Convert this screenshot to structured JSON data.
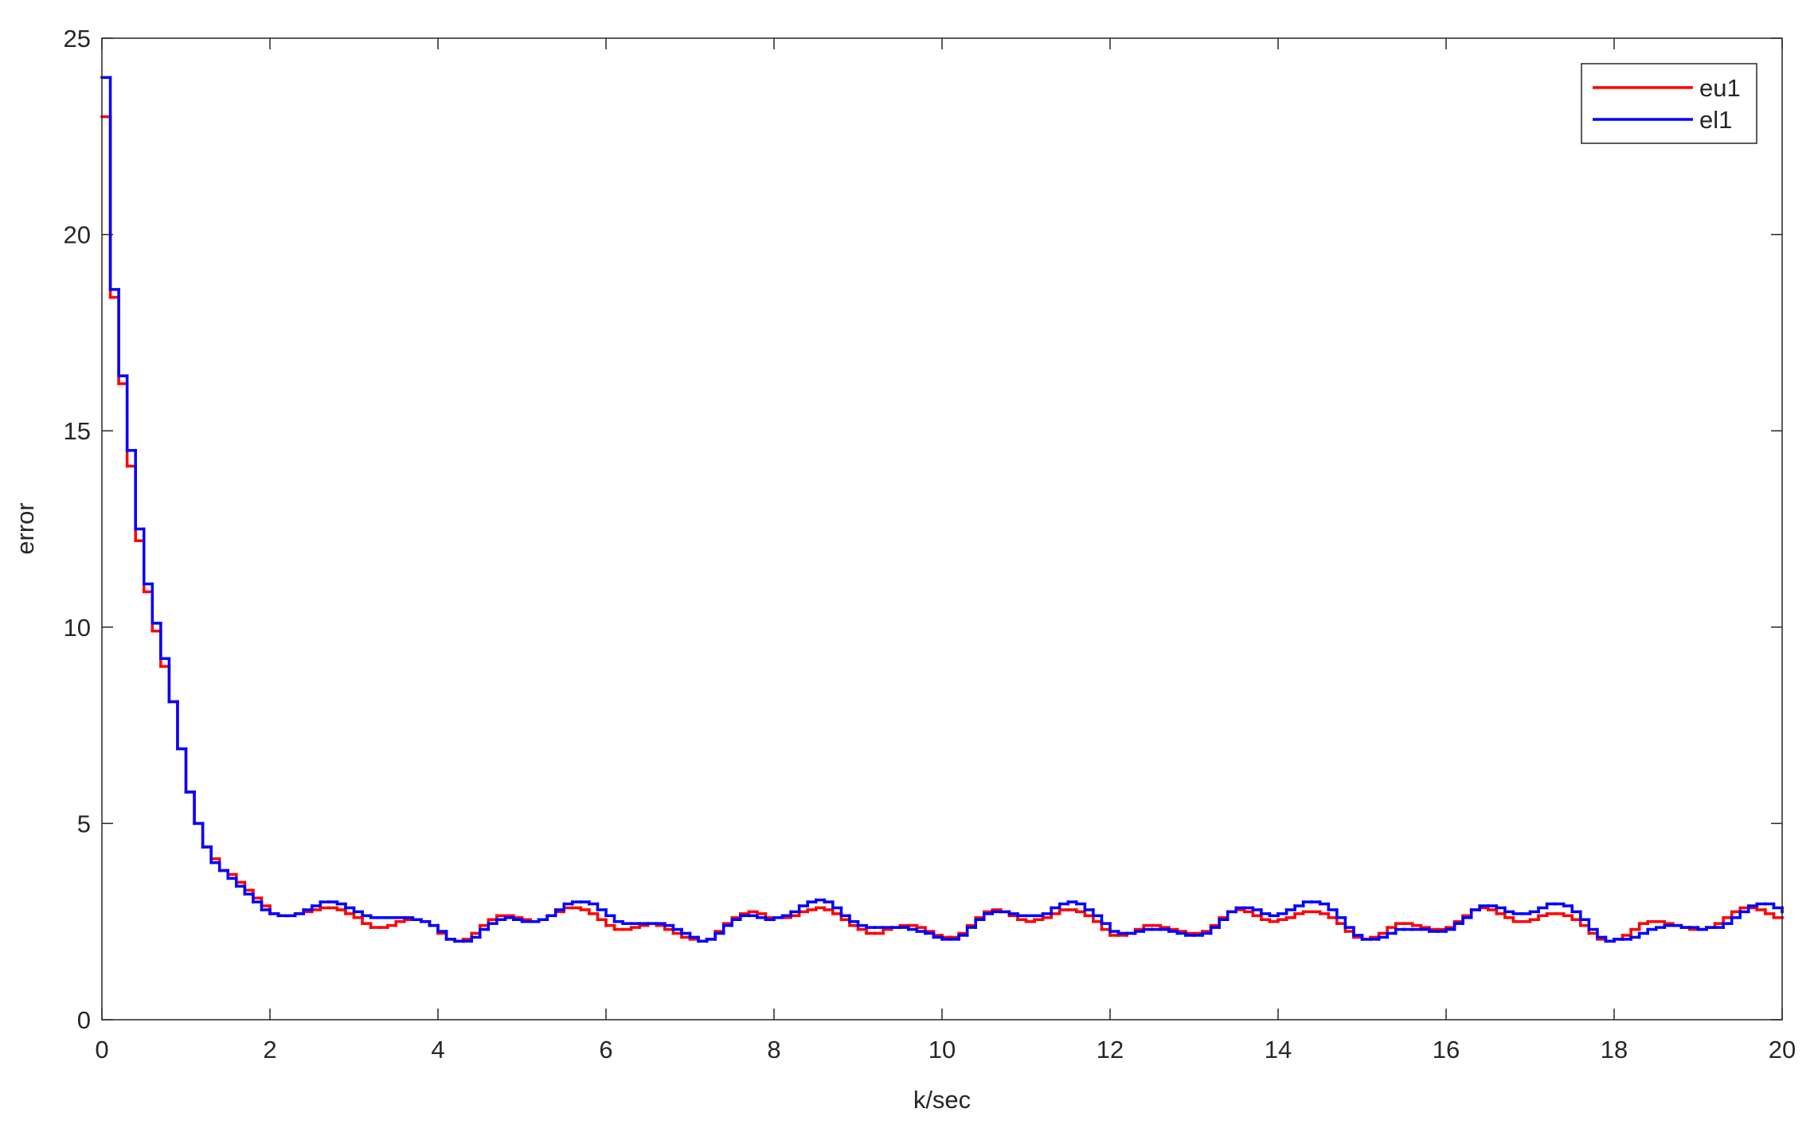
{
  "chart_data": {
    "type": "stairs",
    "x_label": "k/sec",
    "y_label": "error",
    "xlim": [
      0,
      20
    ],
    "ylim": [
      0,
      25
    ],
    "xticks": [
      0,
      2,
      4,
      6,
      8,
      10,
      12,
      14,
      16,
      18,
      20
    ],
    "yticks": [
      0,
      5,
      10,
      15,
      20,
      25
    ],
    "grid": false,
    "legend": "top-right",
    "x": [
      0,
      0.1,
      0.2,
      0.3,
      0.4,
      0.5,
      0.6,
      0.7,
      0.8,
      0.9,
      1,
      1.1,
      1.2,
      1.3,
      1.4,
      1.5,
      1.6,
      1.7,
      1.8,
      1.9,
      2,
      2.1,
      2.2,
      2.3,
      2.4,
      2.5,
      2.6,
      2.7,
      2.8,
      2.9,
      3,
      3.1,
      3.2,
      3.3,
      3.4,
      3.5,
      3.6,
      3.7,
      3.8,
      3.9,
      4,
      4.1,
      4.2,
      4.3,
      4.4,
      4.5,
      4.6,
      4.7,
      4.8,
      4.9,
      5,
      5.1,
      5.2,
      5.3,
      5.4,
      5.5,
      5.6,
      5.7,
      5.8,
      5.9,
      6,
      6.1,
      6.2,
      6.3,
      6.4,
      6.5,
      6.6,
      6.7,
      6.8,
      6.9,
      7,
      7.1,
      7.2,
      7.3,
      7.4,
      7.5,
      7.6,
      7.7,
      7.8,
      7.9,
      8,
      8.1,
      8.2,
      8.3,
      8.4,
      8.5,
      8.6,
      8.7,
      8.8,
      8.9,
      9,
      9.1,
      9.2,
      9.3,
      9.4,
      9.5,
      9.6,
      9.7,
      9.8,
      9.9,
      10,
      10.1,
      10.2,
      10.3,
      10.4,
      10.5,
      10.6,
      10.7,
      10.8,
      10.9,
      11,
      11.1,
      11.2,
      11.3,
      11.4,
      11.5,
      11.6,
      11.7,
      11.8,
      11.9,
      12,
      12.1,
      12.2,
      12.3,
      12.4,
      12.5,
      12.6,
      12.7,
      12.8,
      12.9,
      13,
      13.1,
      13.2,
      13.3,
      13.4,
      13.5,
      13.6,
      13.7,
      13.8,
      13.9,
      14,
      14.1,
      14.2,
      14.3,
      14.4,
      14.5,
      14.6,
      14.7,
      14.8,
      14.9,
      15,
      15.1,
      15.2,
      15.3,
      15.4,
      15.5,
      15.6,
      15.7,
      15.8,
      15.9,
      16,
      16.1,
      16.2,
      16.3,
      16.4,
      16.5,
      16.6,
      16.7,
      16.8,
      16.9,
      17,
      17.1,
      17.2,
      17.3,
      17.4,
      17.5,
      17.6,
      17.7,
      17.8,
      17.9,
      18,
      18.1,
      18.2,
      18.3,
      18.4,
      18.5,
      18.6,
      18.7,
      18.8,
      18.9,
      19,
      19.1,
      19.2,
      19.3,
      19.4,
      19.5,
      19.6,
      19.7,
      19.8,
      19.9,
      20
    ],
    "series": [
      {
        "name": "eu1",
        "color": "#ff0000",
        "values": [
          23,
          18.4,
          16.2,
          14.1,
          12.2,
          10.9,
          9.9,
          9.0,
          8.1,
          6.9,
          5.8,
          5.0,
          4.4,
          4.1,
          3.8,
          3.7,
          3.5,
          3.3,
          3.1,
          2.9,
          2.7,
          2.65,
          2.65,
          2.7,
          2.75,
          2.8,
          2.85,
          2.85,
          2.8,
          2.7,
          2.6,
          2.45,
          2.35,
          2.35,
          2.4,
          2.5,
          2.55,
          2.55,
          2.5,
          2.4,
          2.2,
          2.05,
          2.0,
          2.05,
          2.2,
          2.4,
          2.55,
          2.65,
          2.65,
          2.6,
          2.55,
          2.5,
          2.55,
          2.65,
          2.75,
          2.85,
          2.85,
          2.8,
          2.7,
          2.55,
          2.4,
          2.3,
          2.3,
          2.35,
          2.4,
          2.45,
          2.4,
          2.3,
          2.2,
          2.1,
          2.05,
          2.0,
          2.05,
          2.25,
          2.45,
          2.6,
          2.7,
          2.75,
          2.7,
          2.6,
          2.6,
          2.6,
          2.65,
          2.75,
          2.8,
          2.85,
          2.8,
          2.7,
          2.55,
          2.4,
          2.3,
          2.2,
          2.2,
          2.3,
          2.35,
          2.4,
          2.4,
          2.35,
          2.25,
          2.15,
          2.1,
          2.1,
          2.2,
          2.4,
          2.6,
          2.75,
          2.8,
          2.75,
          2.65,
          2.55,
          2.5,
          2.55,
          2.6,
          2.7,
          2.8,
          2.8,
          2.75,
          2.65,
          2.5,
          2.3,
          2.15,
          2.15,
          2.2,
          2.3,
          2.4,
          2.4,
          2.35,
          2.3,
          2.25,
          2.2,
          2.2,
          2.25,
          2.4,
          2.6,
          2.75,
          2.8,
          2.75,
          2.65,
          2.55,
          2.5,
          2.55,
          2.6,
          2.7,
          2.75,
          2.75,
          2.7,
          2.6,
          2.45,
          2.25,
          2.1,
          2.05,
          2.1,
          2.2,
          2.35,
          2.45,
          2.45,
          2.4,
          2.35,
          2.3,
          2.3,
          2.35,
          2.5,
          2.65,
          2.8,
          2.85,
          2.8,
          2.7,
          2.6,
          2.5,
          2.5,
          2.55,
          2.65,
          2.7,
          2.7,
          2.65,
          2.55,
          2.4,
          2.2,
          2.05,
          2.0,
          2.05,
          2.15,
          2.3,
          2.45,
          2.5,
          2.5,
          2.45,
          2.4,
          2.35,
          2.3,
          2.3,
          2.35,
          2.45,
          2.6,
          2.75,
          2.85,
          2.85,
          2.8,
          2.7,
          2.6,
          2.6
        ]
      },
      {
        "name": "el1",
        "color": "#0000ff",
        "values": [
          24,
          18.6,
          16.4,
          14.5,
          12.5,
          11.1,
          10.1,
          9.2,
          8.1,
          6.9,
          5.8,
          5.0,
          4.4,
          4.0,
          3.8,
          3.6,
          3.4,
          3.2,
          3.0,
          2.8,
          2.7,
          2.65,
          2.65,
          2.7,
          2.8,
          2.9,
          3.0,
          3.0,
          2.95,
          2.85,
          2.75,
          2.65,
          2.6,
          2.6,
          2.6,
          2.6,
          2.6,
          2.55,
          2.5,
          2.4,
          2.25,
          2.05,
          2.0,
          2.0,
          2.1,
          2.3,
          2.45,
          2.55,
          2.6,
          2.55,
          2.5,
          2.5,
          2.55,
          2.65,
          2.8,
          2.95,
          3.0,
          3.0,
          2.95,
          2.8,
          2.65,
          2.5,
          2.45,
          2.45,
          2.45,
          2.45,
          2.45,
          2.4,
          2.3,
          2.2,
          2.1,
          2.0,
          2.05,
          2.2,
          2.4,
          2.55,
          2.65,
          2.65,
          2.6,
          2.55,
          2.6,
          2.65,
          2.75,
          2.9,
          3.0,
          3.05,
          3.0,
          2.85,
          2.65,
          2.5,
          2.4,
          2.35,
          2.35,
          2.35,
          2.35,
          2.35,
          2.3,
          2.25,
          2.2,
          2.1,
          2.05,
          2.05,
          2.15,
          2.35,
          2.55,
          2.7,
          2.75,
          2.75,
          2.7,
          2.65,
          2.65,
          2.65,
          2.7,
          2.85,
          2.95,
          3.0,
          2.95,
          2.8,
          2.65,
          2.45,
          2.25,
          2.2,
          2.2,
          2.25,
          2.3,
          2.3,
          2.3,
          2.25,
          2.2,
          2.15,
          2.15,
          2.2,
          2.35,
          2.55,
          2.75,
          2.85,
          2.85,
          2.8,
          2.7,
          2.65,
          2.7,
          2.8,
          2.9,
          3.0,
          3.0,
          2.95,
          2.8,
          2.6,
          2.35,
          2.15,
          2.05,
          2.05,
          2.1,
          2.2,
          2.3,
          2.3,
          2.3,
          2.3,
          2.25,
          2.25,
          2.3,
          2.45,
          2.6,
          2.8,
          2.9,
          2.9,
          2.85,
          2.75,
          2.7,
          2.7,
          2.75,
          2.85,
          2.95,
          2.95,
          2.9,
          2.75,
          2.55,
          2.3,
          2.1,
          2.0,
          2.05,
          2.05,
          2.1,
          2.2,
          2.3,
          2.35,
          2.4,
          2.4,
          2.35,
          2.35,
          2.3,
          2.35,
          2.35,
          2.45,
          2.6,
          2.75,
          2.9,
          2.95,
          2.95,
          2.85,
          2.75
        ]
      }
    ]
  }
}
